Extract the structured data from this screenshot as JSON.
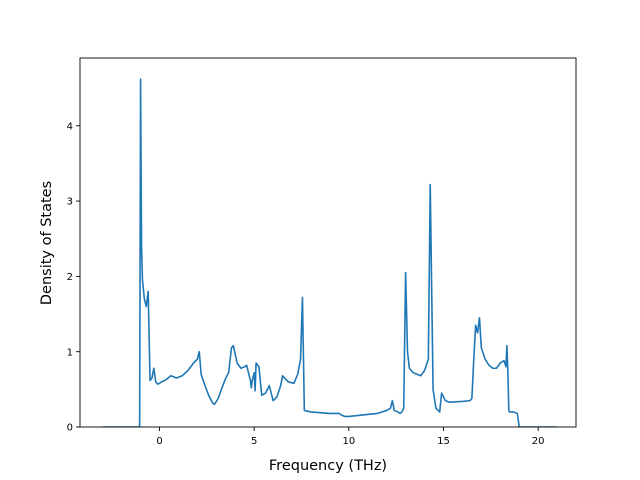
{
  "chart_data": {
    "type": "line",
    "title": "",
    "xlabel": "Frequency (THz)",
    "ylabel": "Density of States",
    "xlim": [
      -4.2,
      22.0
    ],
    "ylim": [
      0,
      4.9
    ],
    "xticks": [
      0,
      5,
      10,
      15,
      20
    ],
    "yticks": [
      0,
      1,
      2,
      3,
      4
    ],
    "grid": false,
    "legend": "none",
    "line_color": "#1f77b4",
    "series": [
      {
        "x": [
          -3.0,
          -1.05,
          -1.0,
          -0.95,
          -0.9,
          -0.8,
          -0.7,
          -0.6,
          -0.5,
          -0.4,
          -0.3,
          -0.2,
          -0.1,
          0.0,
          0.1,
          0.3,
          0.6,
          0.9,
          1.0,
          1.2,
          1.5,
          1.8,
          2.0,
          2.1,
          2.2,
          2.4,
          2.6,
          2.8,
          2.9,
          3.1,
          3.3,
          3.5,
          3.65,
          3.8,
          3.9,
          4.1,
          4.3,
          4.5,
          4.6,
          4.8,
          4.85,
          4.9,
          5.0,
          5.05,
          5.1,
          5.25,
          5.4,
          5.6,
          5.8,
          6.0,
          6.2,
          6.4,
          6.5,
          6.8,
          7.1,
          7.3,
          7.45,
          7.55,
          7.65,
          8.0,
          9.0,
          9.5,
          9.6,
          9.8,
          10.0,
          11.5,
          12.0,
          12.2,
          12.3,
          12.4,
          12.6,
          12.7,
          12.8,
          12.9,
          13.0,
          13.1,
          13.2,
          13.4,
          13.6,
          13.8,
          14.0,
          14.2,
          14.3,
          14.45,
          14.6,
          14.8,
          14.9,
          15.0,
          15.1,
          15.3,
          16.0,
          16.4,
          16.5,
          16.6,
          16.7,
          16.8,
          16.9,
          17.0,
          17.2,
          17.4,
          17.6,
          17.8,
          18.0,
          18.2,
          18.3,
          18.35,
          18.4,
          18.45,
          18.5,
          18.7,
          18.9,
          19.0,
          20.0,
          21.0
        ],
        "y": [
          0.0,
          0.0,
          4.62,
          2.4,
          1.95,
          1.7,
          1.6,
          1.8,
          0.62,
          0.65,
          0.78,
          0.6,
          0.57,
          0.58,
          0.6,
          0.62,
          0.68,
          0.65,
          0.66,
          0.68,
          0.75,
          0.85,
          0.9,
          1.0,
          0.7,
          0.55,
          0.42,
          0.32,
          0.3,
          0.38,
          0.52,
          0.65,
          0.72,
          1.05,
          1.08,
          0.85,
          0.78,
          0.8,
          0.82,
          0.62,
          0.52,
          0.62,
          0.72,
          0.48,
          0.85,
          0.8,
          0.42,
          0.45,
          0.55,
          0.35,
          0.4,
          0.55,
          0.68,
          0.6,
          0.58,
          0.7,
          0.9,
          1.72,
          0.22,
          0.2,
          0.18,
          0.18,
          0.16,
          0.14,
          0.14,
          0.18,
          0.22,
          0.25,
          0.35,
          0.22,
          0.2,
          0.18,
          0.2,
          0.25,
          2.05,
          1.0,
          0.78,
          0.72,
          0.7,
          0.68,
          0.75,
          0.9,
          3.22,
          0.5,
          0.25,
          0.2,
          0.45,
          0.4,
          0.35,
          0.33,
          0.34,
          0.35,
          0.38,
          0.9,
          1.35,
          1.25,
          1.45,
          1.05,
          0.9,
          0.82,
          0.78,
          0.78,
          0.85,
          0.88,
          0.8,
          1.08,
          0.75,
          0.22,
          0.2,
          0.2,
          0.18,
          0.0,
          0.0,
          0.0
        ]
      }
    ]
  }
}
